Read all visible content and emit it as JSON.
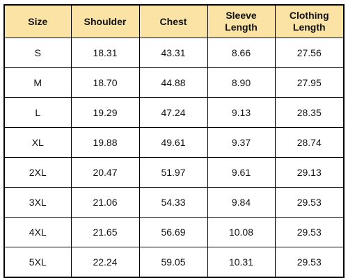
{
  "table": {
    "headers": [
      [
        "Size"
      ],
      [
        "Shoulder"
      ],
      [
        "Chest"
      ],
      [
        "Sleeve",
        "Length"
      ],
      [
        "Clothing",
        "Length"
      ]
    ],
    "rows": [
      [
        "S",
        "18.31",
        "43.31",
        "8.66",
        "27.56"
      ],
      [
        "M",
        "18.70",
        "44.88",
        "8.90",
        "27.95"
      ],
      [
        "L",
        "19.29",
        "47.24",
        "9.13",
        "28.35"
      ],
      [
        "XL",
        "19.88",
        "49.61",
        "9.37",
        "28.74"
      ],
      [
        "2XL",
        "20.47",
        "51.97",
        "9.61",
        "29.13"
      ],
      [
        "3XL",
        "21.06",
        "54.33",
        "9.84",
        "29.53"
      ],
      [
        "4XL",
        "21.65",
        "56.69",
        "10.08",
        "29.53"
      ],
      [
        "5XL",
        "22.24",
        "59.05",
        "10.31",
        "29.53"
      ]
    ],
    "header_bg": "#fbe3a6",
    "border_color": "#000000"
  }
}
